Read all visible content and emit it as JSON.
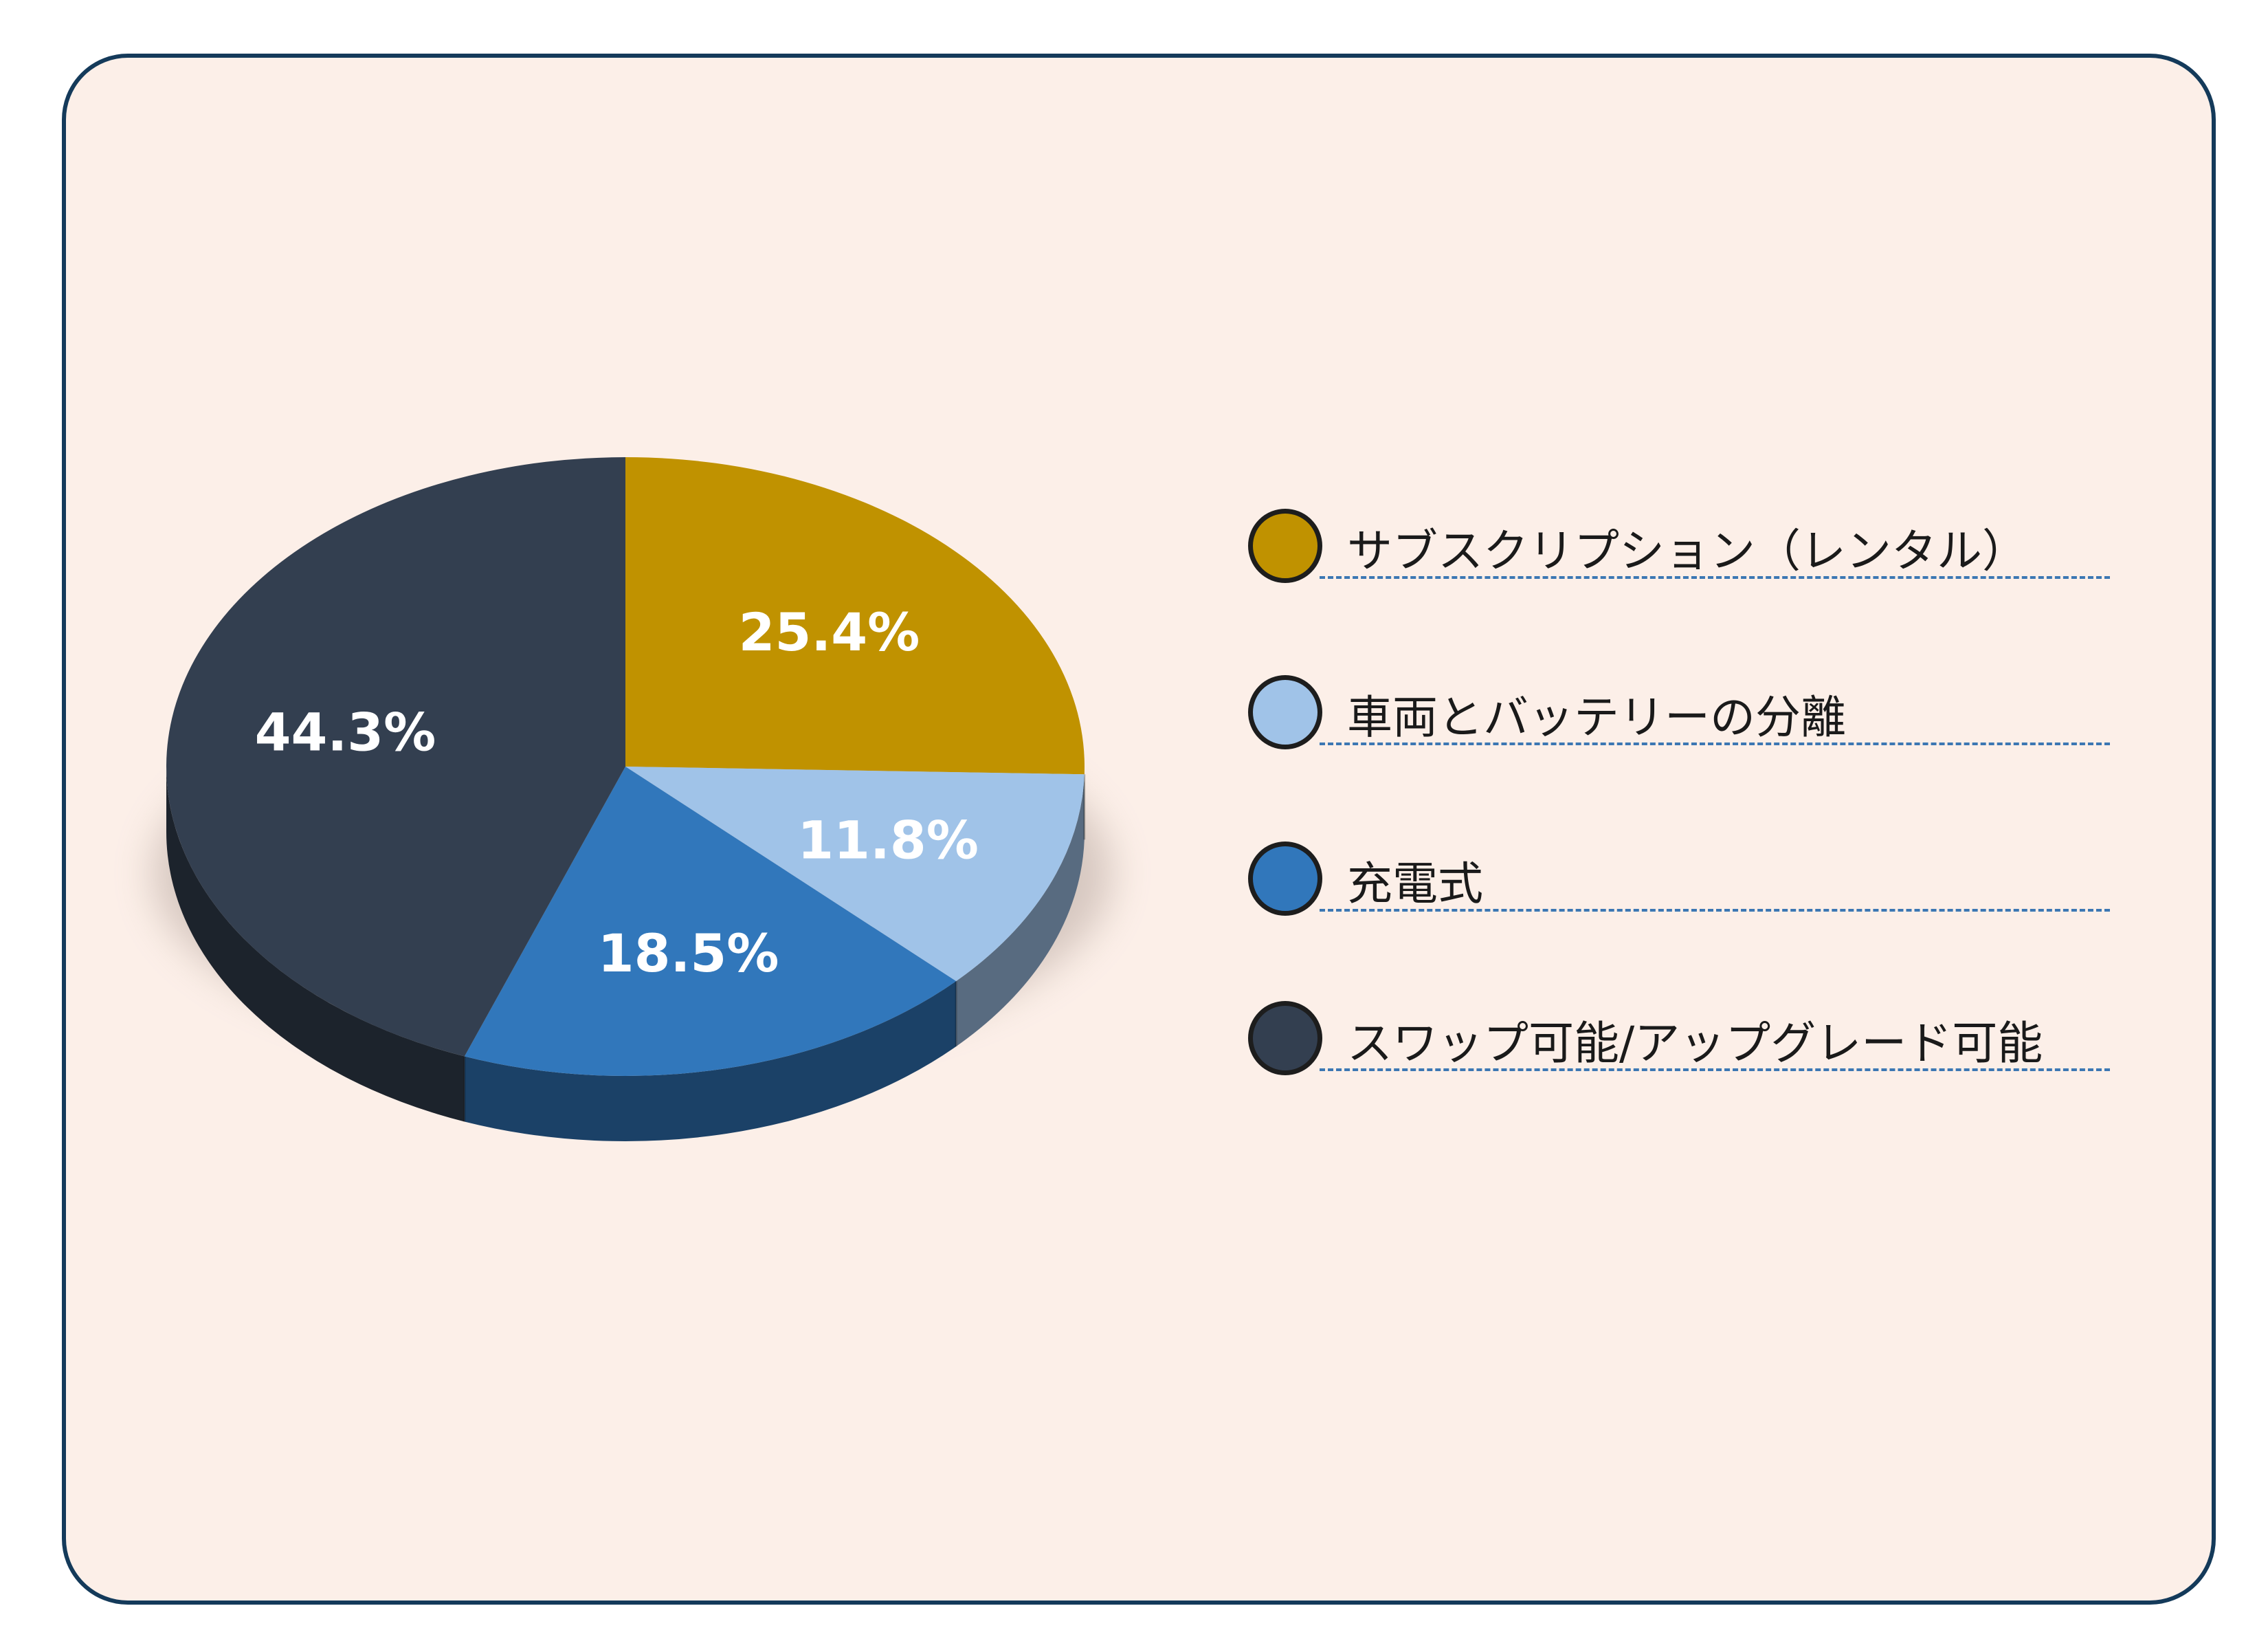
{
  "chart_data": {
    "type": "pie",
    "title": "",
    "series": [
      {
        "slices": [
          {
            "label": "サブスクリプション（レンタル）",
            "value": 25.4,
            "display": "25.4%",
            "color": "#c09200"
          },
          {
            "label": "車両とバッテリーの分離",
            "value": 11.8,
            "display": "11.8%",
            "color": "#a0c3e8"
          },
          {
            "label": "充電式",
            "value": 18.5,
            "display": "18.5%",
            "color": "#3177bb"
          },
          {
            "label": "スワップ可能/アップグレード可能",
            "value": 44.3,
            "display": "44.3%",
            "color": "#333f50"
          }
        ]
      }
    ],
    "legend": "right",
    "style": "3d"
  },
  "colors": {
    "panel_background": "#fcefe8",
    "panel_border": "#143a5a",
    "legend_rule": "#3c77b3"
  }
}
